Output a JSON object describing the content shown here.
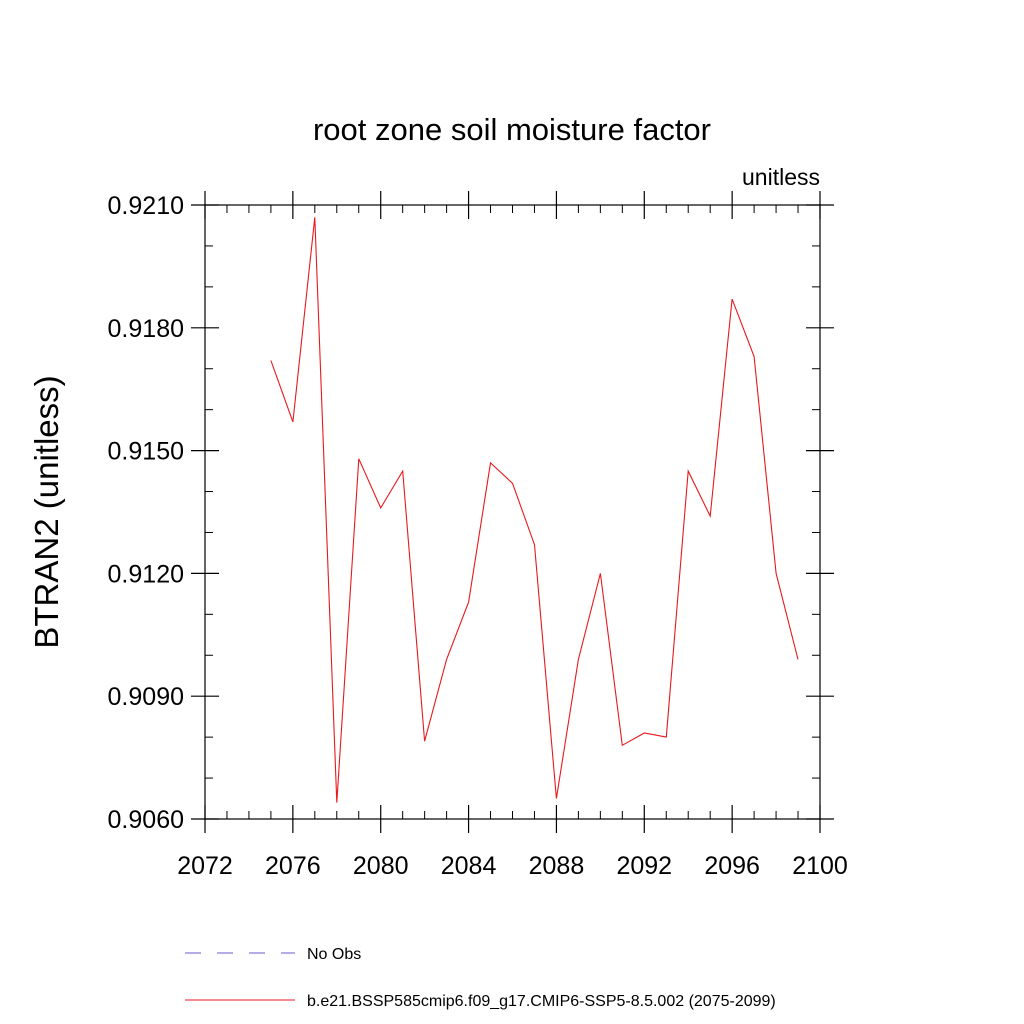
{
  "chart_data": {
    "type": "line",
    "title": "root zone soil moisture factor",
    "units_label": "unitless",
    "ylabel": "BTRAN2  (unitless)",
    "xlabel": "",
    "xlim": [
      2072,
      2100
    ],
    "ylim": [
      0.906,
      0.921
    ],
    "xticks": [
      2072,
      2076,
      2080,
      2084,
      2088,
      2092,
      2096,
      2100
    ],
    "xtick_labels": [
      "2072",
      "2076",
      "2080",
      "2084",
      "2088",
      "2092",
      "2096",
      "2100"
    ],
    "xminor_step": 1,
    "yticks": [
      0.906,
      0.909,
      0.912,
      0.915,
      0.918,
      0.921
    ],
    "ytick_labels": [
      "0.9060",
      "0.9090",
      "0.9120",
      "0.9150",
      "0.9180",
      "0.9210"
    ],
    "yminor_step": 0.001,
    "series": [
      {
        "name": "b.e21.BSSP585cmip6.f09_g17.CMIP6-SSP5-8.5.002 (2075-2099)",
        "color": "#e8191c",
        "dash": false,
        "x": [
          2075,
          2076,
          2077,
          2078,
          2079,
          2080,
          2081,
          2082,
          2083,
          2084,
          2085,
          2086,
          2087,
          2088,
          2089,
          2090,
          2091,
          2092,
          2093,
          2094,
          2095,
          2096,
          2097,
          2098,
          2099
        ],
        "y": [
          0.9172,
          0.9157,
          0.9207,
          0.9064,
          0.9148,
          0.9136,
          0.9145,
          0.9079,
          0.9099,
          0.9113,
          0.9147,
          0.9142,
          0.9127,
          0.9065,
          0.9099,
          0.912,
          0.9078,
          0.9081,
          0.908,
          0.9145,
          0.9134,
          0.9187,
          0.9173,
          0.912,
          0.9099
        ]
      }
    ],
    "legend": [
      {
        "label": "No Obs",
        "color": "#6a5acd",
        "dash": true
      },
      {
        "label": "b.e21.BSSP585cmip6.f09_g17.CMIP6-SSP5-8.5.002 (2075-2099)",
        "color": "#e8191c",
        "dash": false
      }
    ],
    "legend_position": "bottom",
    "grid": false
  }
}
